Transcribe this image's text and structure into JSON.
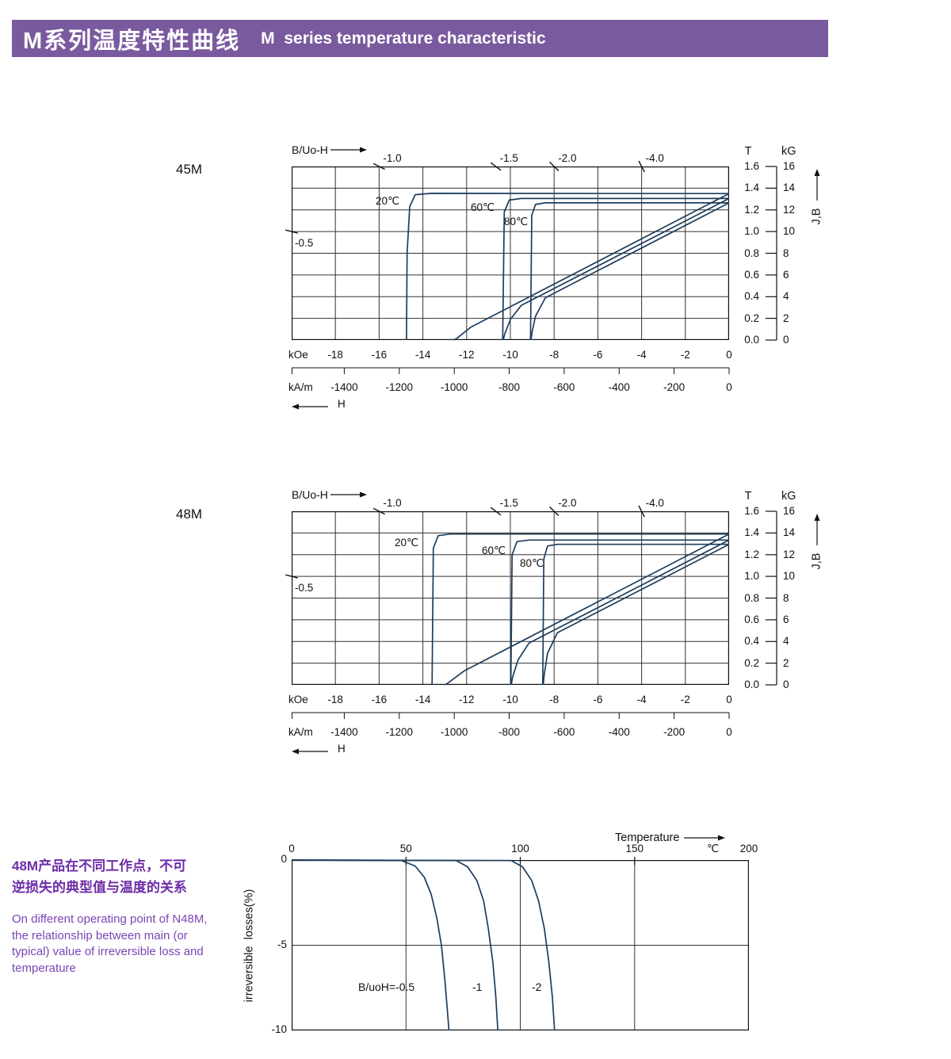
{
  "header": {
    "title_zh": "M系列温度特性曲线",
    "title_en": "M  series temperature characteristic"
  },
  "colors": {
    "header_bg": "#7a5a9e",
    "curve": "#1d3d5c",
    "grid": "#333333",
    "axis": "#111111",
    "note_zh": "#6e2da8",
    "note_en": "#7d44b5"
  },
  "side_note": {
    "zh_lines": [
      "48M产品在不同工作点，不可",
      "逆损失的典型值与温度的关系"
    ],
    "en_lines": [
      "On different operating point of N48M,",
      "the relationship between main (or",
      "typical) value of irreversible loss and",
      "temperature"
    ]
  },
  "chart_data": [
    {
      "id": "demag-45M",
      "type": "line",
      "title": "45M",
      "x_axis": {
        "top_label": "B/Uo-H",
        "range_kOe": [
          -20,
          0
        ],
        "units": [
          {
            "name": "kOe",
            "ticks": [
              "-18",
              "-16",
              "-14",
              "-12",
              "-10",
              "-8",
              "-6",
              "-4",
              "-2",
              "0"
            ]
          },
          {
            "name": "kA/m",
            "ticks": [
              "-1400",
              "-1200",
              "-1000",
              "-800",
              "-600",
              "-400",
              "-200",
              "0"
            ]
          }
        ],
        "arrow_label": "H"
      },
      "y_axis": {
        "t_header": "T",
        "t_ticks": [
          "1.6",
          "1.4",
          "1.2",
          "1.0",
          "0.8",
          "0.6",
          "0.4",
          "0.2",
          "0.0"
        ],
        "kg_header": "kG",
        "kg_ticks": [
          "16",
          "14",
          "12",
          "10",
          "8",
          "6",
          "4",
          "2",
          "0"
        ],
        "axis_label": "J,B",
        "range_kG": [
          0,
          16
        ]
      },
      "load_lines": [
        {
          "label": "-0.5",
          "ratio": 0.5
        },
        {
          "label": "-1.0",
          "ratio": 1
        },
        {
          "label": "-1.5",
          "ratio": 1.5
        },
        {
          "label": "-2.0",
          "ratio": 2
        },
        {
          "label": "-4.0",
          "ratio": 4
        }
      ],
      "temp_labels": [
        {
          "text": "20℃",
          "x": 106,
          "y": 36
        },
        {
          "text": "60℃",
          "x": 226,
          "y": 44
        },
        {
          "text": "80℃",
          "x": 268,
          "y": 62
        }
      ],
      "series": [
        {
          "name": "20C-J",
          "temp": "20℃",
          "branch": "J",
          "points": [
            [
              0,
              13.5
            ],
            [
              -13.6,
              13.52
            ],
            [
              -14.35,
              13.4
            ],
            [
              -14.6,
              12.3
            ],
            [
              -14.72,
              8
            ],
            [
              -14.75,
              0
            ]
          ]
        },
        {
          "name": "20C-B",
          "temp": "20℃",
          "branch": "B",
          "points": [
            [
              0,
              13.5
            ],
            [
              -11.8,
              1.2
            ],
            [
              -12.45,
              0.15
            ],
            [
              -12.6,
              0
            ]
          ]
        },
        {
          "name": "60C-J",
          "temp": "60℃",
          "branch": "J",
          "points": [
            [
              0,
              13.05
            ],
            [
              -9.5,
              13.05
            ],
            [
              -10.05,
              12.9
            ],
            [
              -10.28,
              11.8
            ],
            [
              -10.35,
              0
            ]
          ]
        },
        {
          "name": "60C-B",
          "temp": "60℃",
          "branch": "B",
          "points": [
            [
              0,
              13.05
            ],
            [
              -9.5,
              3.2
            ],
            [
              -10.0,
              1.9
            ],
            [
              -10.25,
              0.6
            ],
            [
              -10.33,
              0
            ]
          ]
        },
        {
          "name": "80C-J",
          "temp": "80℃",
          "branch": "J",
          "points": [
            [
              0,
              12.65
            ],
            [
              -8.4,
              12.65
            ],
            [
              -8.85,
              12.5
            ],
            [
              -9.02,
              11.5
            ],
            [
              -9.08,
              0
            ]
          ]
        },
        {
          "name": "80C-B",
          "temp": "80℃",
          "branch": "B",
          "points": [
            [
              0,
              12.65
            ],
            [
              -8.4,
              3.9
            ],
            [
              -8.85,
              2.2
            ],
            [
              -9.0,
              0.8
            ],
            [
              -9.06,
              0
            ]
          ]
        }
      ]
    },
    {
      "id": "demag-48M",
      "type": "line",
      "title": "48M",
      "x_axis": {
        "top_label": "B/Uo-H",
        "range_kOe": [
          -20,
          0
        ],
        "units": [
          {
            "name": "kOe",
            "ticks": [
              "-18",
              "-16",
              "-14",
              "-12",
              "-10",
              "-8",
              "-6",
              "-4",
              "-2",
              "0"
            ]
          },
          {
            "name": "kA/m",
            "ticks": [
              "-1400",
              "-1200",
              "-1000",
              "-800",
              "-600",
              "-400",
              "-200",
              "0"
            ]
          }
        ],
        "arrow_label": "H"
      },
      "y_axis": {
        "t_header": "T",
        "t_ticks": [
          "1.6",
          "1.4",
          "1.2",
          "1.0",
          "0.8",
          "0.6",
          "0.4",
          "0.2",
          "0.0"
        ],
        "kg_header": "kG",
        "kg_ticks": [
          "16",
          "14",
          "12",
          "10",
          "8",
          "6",
          "4",
          "2",
          "0"
        ],
        "axis_label": "J,B",
        "range_kG": [
          0,
          16
        ]
      },
      "load_lines": [
        {
          "label": "-0.5",
          "ratio": 0.5
        },
        {
          "label": "-1.0",
          "ratio": 1
        },
        {
          "label": "-1.5",
          "ratio": 1.5
        },
        {
          "label": "-2.0",
          "ratio": 2
        },
        {
          "label": "-4.0",
          "ratio": 4
        }
      ],
      "temp_labels": [
        {
          "text": "20℃",
          "x": 130,
          "y": 32
        },
        {
          "text": "60℃",
          "x": 240,
          "y": 42
        },
        {
          "text": "80℃",
          "x": 288,
          "y": 58
        }
      ],
      "series": [
        {
          "name": "20C-J",
          "temp": "20℃",
          "branch": "J",
          "points": [
            [
              0,
              13.9
            ],
            [
              -12.75,
              13.9
            ],
            [
              -13.3,
              13.75
            ],
            [
              -13.52,
              12.6
            ],
            [
              -13.58,
              0
            ]
          ]
        },
        {
          "name": "20C-B",
          "temp": "20℃",
          "branch": "B",
          "points": [
            [
              0,
              13.9
            ],
            [
              -12.1,
              1.3
            ],
            [
              -12.9,
              0.1
            ],
            [
              -13.0,
              0
            ]
          ]
        },
        {
          "name": "60C-J",
          "temp": "60℃",
          "branch": "J",
          "points": [
            [
              0,
              13.35
            ],
            [
              -9.15,
              13.35
            ],
            [
              -9.7,
              13.2
            ],
            [
              -9.92,
              12
            ],
            [
              -9.98,
              0
            ]
          ]
        },
        {
          "name": "60C-B",
          "temp": "60℃",
          "branch": "B",
          "points": [
            [
              0,
              13.35
            ],
            [
              -9.15,
              3.85
            ],
            [
              -9.65,
              2.3
            ],
            [
              -9.9,
              0.7
            ],
            [
              -9.96,
              0
            ]
          ]
        },
        {
          "name": "80C-J",
          "temp": "80℃",
          "branch": "J",
          "points": [
            [
              0,
              12.95
            ],
            [
              -7.85,
              12.95
            ],
            [
              -8.3,
              12.8
            ],
            [
              -8.47,
              11.6
            ],
            [
              -8.52,
              0
            ]
          ]
        },
        {
          "name": "80C-B",
          "temp": "80℃",
          "branch": "B",
          "points": [
            [
              0,
              12.95
            ],
            [
              -7.85,
              4.8
            ],
            [
              -8.3,
              2.9
            ],
            [
              -8.45,
              1.0
            ],
            [
              -8.5,
              0
            ]
          ]
        }
      ]
    },
    {
      "id": "irreversible-loss",
      "type": "line",
      "x_axis": {
        "label": "Temperature",
        "unit": "℃",
        "ticks": [
          "0",
          "50",
          "100",
          "150",
          "200"
        ],
        "range": [
          0,
          200
        ]
      },
      "y_axis": {
        "label": "irreversible  losses(%)",
        "ticks": [
          "0",
          "-5",
          "-10"
        ],
        "range": [
          -10,
          0
        ]
      },
      "series": [
        {
          "name": "B/uoH=-0.5",
          "points": [
            [
              0,
              0
            ],
            [
              48,
              -0.03
            ],
            [
              54,
              -0.35
            ],
            [
              58,
              -1.0
            ],
            [
              61,
              -2.0
            ],
            [
              63.5,
              -3.4
            ],
            [
              65.5,
              -5.0
            ],
            [
              67,
              -7.0
            ],
            [
              68.2,
              -9.0
            ],
            [
              68.8,
              -10
            ]
          ]
        },
        {
          "name": "-1",
          "points": [
            [
              0,
              0
            ],
            [
              72,
              -0.03
            ],
            [
              77,
              -0.4
            ],
            [
              81,
              -1.2
            ],
            [
              84,
              -2.4
            ],
            [
              86,
              -4.0
            ],
            [
              88,
              -6.0
            ],
            [
              89.3,
              -8.0
            ],
            [
              90.2,
              -10
            ]
          ]
        },
        {
          "name": "-2",
          "points": [
            [
              0,
              0
            ],
            [
              96,
              -0.03
            ],
            [
              101,
              -0.4
            ],
            [
              105,
              -1.2
            ],
            [
              108,
              -2.4
            ],
            [
              110.5,
              -4.0
            ],
            [
              112.5,
              -6.0
            ],
            [
              114,
              -8.0
            ],
            [
              115,
              -10
            ]
          ]
        }
      ],
      "series_labels": [
        {
          "text": "B/uoH=-0.5",
          "x": 84,
          "y": 152
        },
        {
          "text": "-1",
          "x": 228,
          "y": 152
        },
        {
          "text": "-2",
          "x": 303,
          "y": 152
        }
      ]
    }
  ]
}
